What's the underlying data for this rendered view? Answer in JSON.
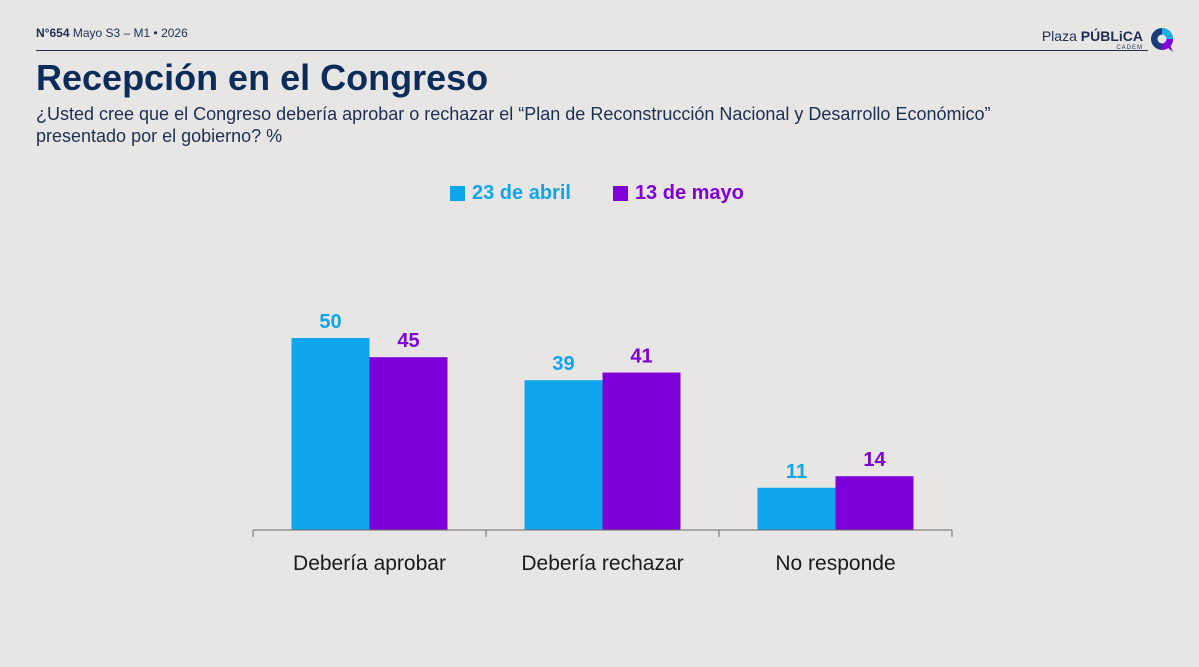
{
  "header": {
    "issue_number": "N°654",
    "issue_rest": "Mayo S3 – M1 • 2026",
    "brand_light": "Plaza ",
    "brand_bold": "PÚBLiCA",
    "brand_sub": "CADEM"
  },
  "title": "Recepción en el Congreso",
  "question": "¿Usted cree que el Congreso debería aprobar o rechazar el “Plan de Reconstrucción Nacional y Desarrollo Económico” presentado por el gobierno? %",
  "colors": {
    "series1": "#0ea5ea",
    "series2": "#7f00d9",
    "title": "#0c2c5a",
    "axis": "#6b6b6b"
  },
  "chart_data": {
    "type": "bar",
    "categories": [
      "Debería aprobar",
      "Debería rechazar",
      "No responde"
    ],
    "series": [
      {
        "name": "23 de abril",
        "values": [
          50,
          39,
          11
        ]
      },
      {
        "name": "13 de mayo",
        "values": [
          45,
          41,
          14
        ]
      }
    ],
    "ylim": [
      0,
      50
    ],
    "grid": false,
    "legend_position": "top-center",
    "data_labels": true
  }
}
